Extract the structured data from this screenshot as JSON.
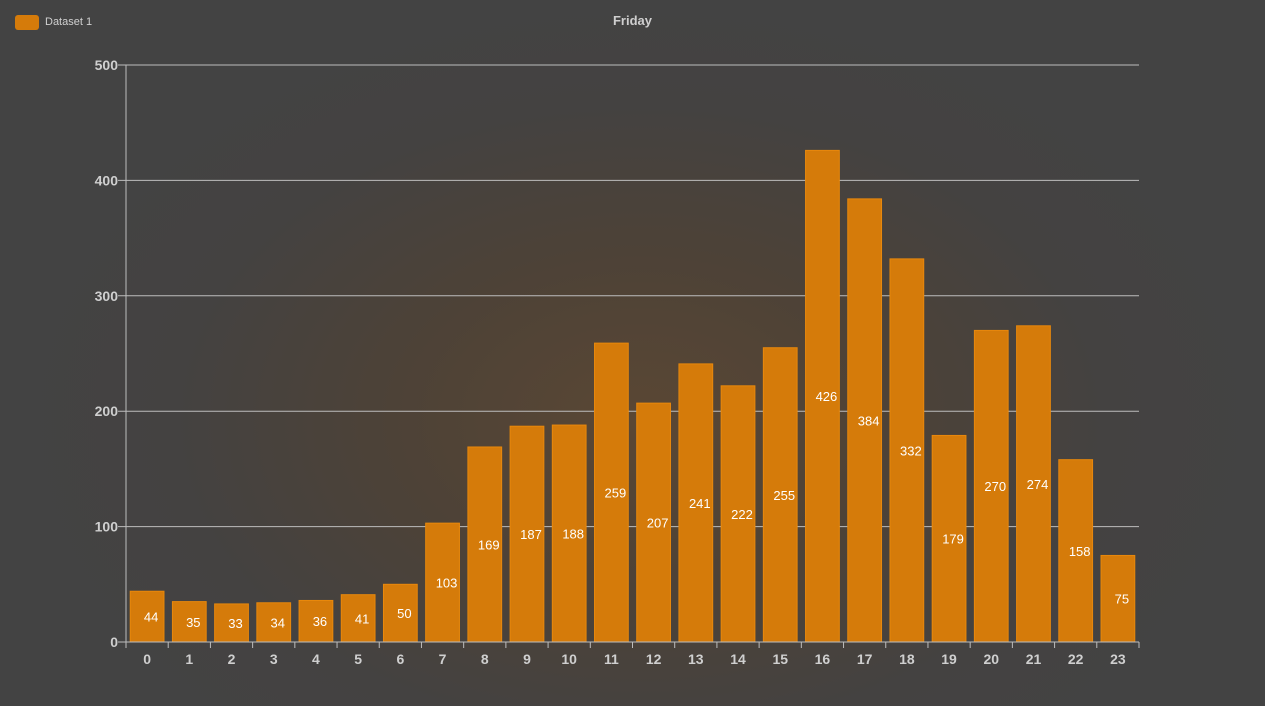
{
  "legend": {
    "label": "Dataset 1"
  },
  "colors": {
    "bar": "#d57b0a",
    "bar_border": "#e8880c",
    "grid": "#bdbdbd",
    "text": "#cfcfcf"
  },
  "chart_data": {
    "type": "bar",
    "title": "Friday",
    "xlabel": "",
    "ylabel": "",
    "ylim": [
      0,
      500
    ],
    "yticks": [
      0,
      100,
      200,
      300,
      400,
      500
    ],
    "categories": [
      "0",
      "1",
      "2",
      "3",
      "4",
      "5",
      "6",
      "7",
      "8",
      "9",
      "10",
      "11",
      "12",
      "13",
      "14",
      "15",
      "16",
      "17",
      "18",
      "19",
      "20",
      "21",
      "22",
      "23"
    ],
    "series": [
      {
        "name": "Dataset 1",
        "values": [
          44,
          35,
          33,
          34,
          36,
          41,
          50,
          103,
          169,
          187,
          188,
          259,
          207,
          241,
          222,
          255,
          426,
          384,
          332,
          179,
          270,
          274,
          158,
          75
        ]
      }
    ],
    "legend_position": "top-left",
    "grid": true
  }
}
